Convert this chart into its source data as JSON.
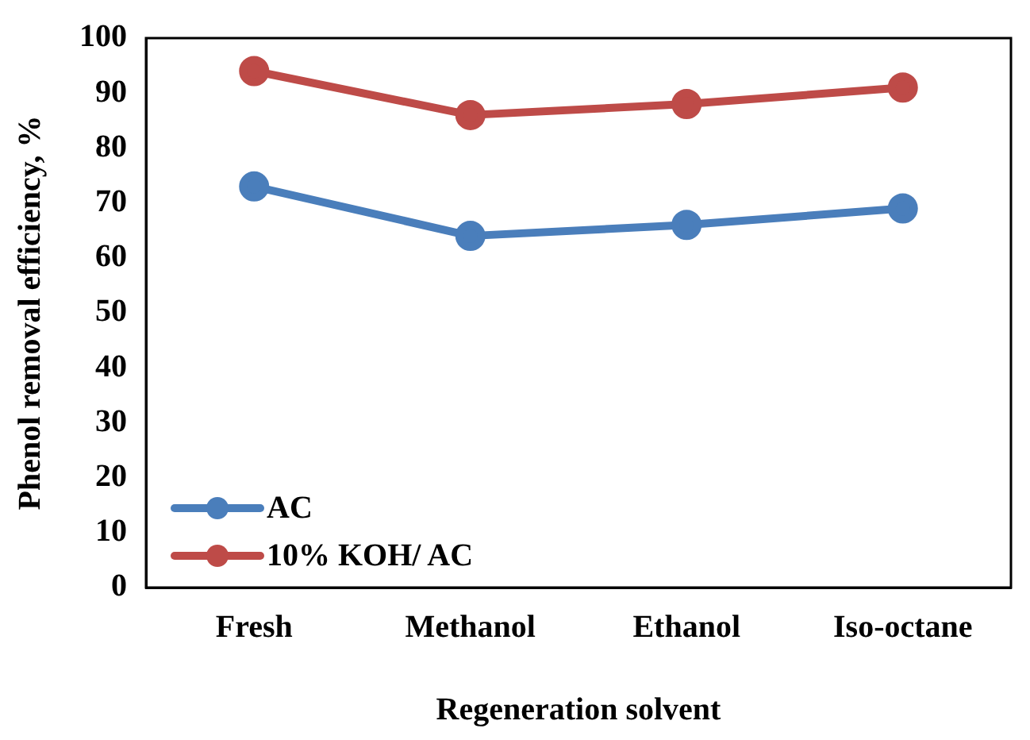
{
  "chart_data": {
    "type": "line",
    "xlabel": "Regeneration solvent",
    "ylabel": "Phenol removal efficiency, %",
    "categories": [
      "Fresh",
      "Methanol",
      "Ethanol",
      "Iso-octane"
    ],
    "series": [
      {
        "name": "AC",
        "color": "#4a7ebb",
        "values": [
          73,
          64,
          66,
          69
        ]
      },
      {
        "name": "10% KOH/ AC",
        "color": "#be4b48",
        "values": [
          94,
          86,
          88,
          91
        ]
      }
    ],
    "ylim": [
      0,
      100
    ],
    "yticks": [
      0,
      10,
      20,
      30,
      40,
      50,
      60,
      70,
      80,
      90,
      100
    ],
    "grid": false,
    "legend": "bottom left",
    "marker": "circle",
    "line_style": "solid"
  }
}
